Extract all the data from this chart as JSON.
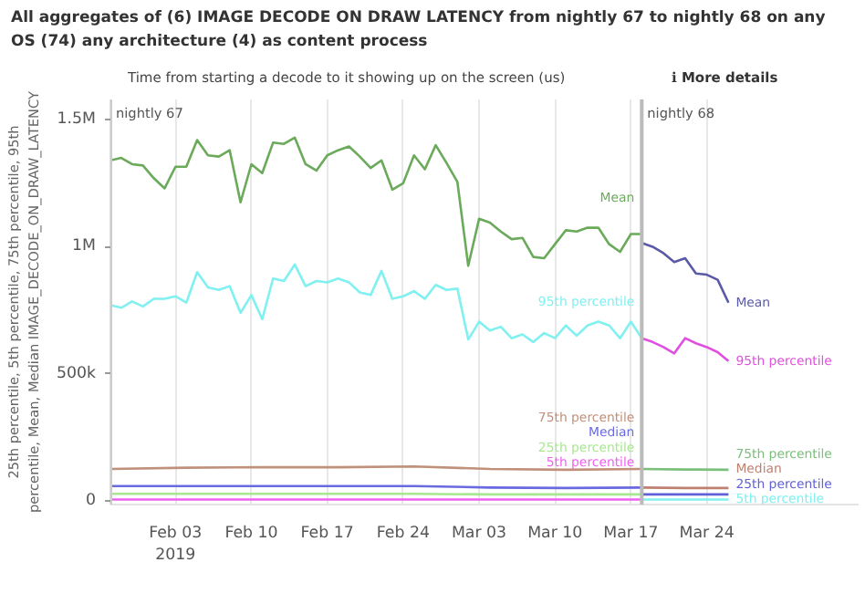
{
  "chart_data": {
    "type": "line",
    "title": "All aggregates of (6) IMAGE DECODE ON DRAW LATENCY from nightly 67 to nightly 68 on any OS (74) any architecture (4) as content process",
    "subtitle": "Time from starting a decode to it showing up on the screen (us)",
    "annotations": [
      "ℹ More details"
    ],
    "ylabel": "25th percentile, 5th percentile, 75th percentile, 95th percentile, Mean, Median IMAGE_DECODE_ON_DRAW_LATENCY",
    "xlim": [
      "2019-01-28",
      "2019-04-07"
    ],
    "xticks": [
      {
        "value": "2019-02-03",
        "label": "Feb 03\n2019"
      },
      {
        "value": "2019-02-10",
        "label": "Feb 10"
      },
      {
        "value": "2019-02-17",
        "label": "Feb 17"
      },
      {
        "value": "2019-02-24",
        "label": "Feb 24"
      },
      {
        "value": "2019-03-03",
        "label": "Mar 03"
      },
      {
        "value": "2019-03-10",
        "label": "Mar 10"
      },
      {
        "value": "2019-03-17",
        "label": "Mar 17"
      },
      {
        "value": "2019-03-24",
        "label": "Mar 24"
      }
    ],
    "ylim": [
      -15000,
      1580000
    ],
    "yticks": [
      {
        "value": 0,
        "label": "0"
      },
      {
        "value": 500000,
        "label": "500k"
      },
      {
        "value": 1000000,
        "label": "1M"
      },
      {
        "value": 1500000,
        "label": "1.5M"
      }
    ],
    "grid": "x",
    "marker": "none",
    "line_style": "solid",
    "ref_lines": [
      {
        "axis": "x",
        "value": "2019-01-28",
        "label": "nightly 67",
        "color": "#cccccc"
      },
      {
        "axis": "x",
        "value": "2019-03-18",
        "label": "nightly 68",
        "color": "#bbbbbb"
      }
    ],
    "series": [
      {
        "name": "Mean",
        "color": "#6aaa5a",
        "x": [
          "2019-01-28",
          "2019-01-29",
          "2019-01-30",
          "2019-01-31",
          "2019-02-01",
          "2019-02-02",
          "2019-02-03",
          "2019-02-04",
          "2019-02-05",
          "2019-02-06",
          "2019-02-07",
          "2019-02-08",
          "2019-02-09",
          "2019-02-10",
          "2019-02-11",
          "2019-02-12",
          "2019-02-13",
          "2019-02-14",
          "2019-02-15",
          "2019-02-16",
          "2019-02-17",
          "2019-02-18",
          "2019-02-19",
          "2019-02-20",
          "2019-02-21",
          "2019-02-22",
          "2019-02-23",
          "2019-02-24",
          "2019-02-25",
          "2019-02-26",
          "2019-02-27",
          "2019-02-28",
          "2019-03-01",
          "2019-03-02",
          "2019-03-03",
          "2019-03-04",
          "2019-03-05",
          "2019-03-06",
          "2019-03-07",
          "2019-03-08",
          "2019-03-09",
          "2019-03-10",
          "2019-03-11",
          "2019-03-12",
          "2019-03-13",
          "2019-03-14",
          "2019-03-15",
          "2019-03-16",
          "2019-03-17",
          "2019-03-18"
        ],
        "values": [
          1340000,
          1350000,
          1325000,
          1320000,
          1270000,
          1230000,
          1315000,
          1315000,
          1420000,
          1360000,
          1355000,
          1380000,
          1175000,
          1325000,
          1290000,
          1410000,
          1405000,
          1430000,
          1325000,
          1300000,
          1360000,
          1380000,
          1395000,
          1355000,
          1310000,
          1340000,
          1225000,
          1250000,
          1360000,
          1305000,
          1400000,
          1330000,
          1255000,
          925000,
          1110000,
          1095000,
          1060000,
          1030000,
          1035000,
          960000,
          955000,
          1010000,
          1065000,
          1060000,
          1075000,
          1075000,
          1010000,
          980000,
          1050000,
          1050000
        ]
      },
      {
        "name": "95th percentile",
        "color": "#80f0f0",
        "x": [
          "2019-01-28",
          "2019-01-29",
          "2019-01-30",
          "2019-01-31",
          "2019-02-01",
          "2019-02-02",
          "2019-02-03",
          "2019-02-04",
          "2019-02-05",
          "2019-02-06",
          "2019-02-07",
          "2019-02-08",
          "2019-02-09",
          "2019-02-10",
          "2019-02-11",
          "2019-02-12",
          "2019-02-13",
          "2019-02-14",
          "2019-02-15",
          "2019-02-16",
          "2019-02-17",
          "2019-02-18",
          "2019-02-19",
          "2019-02-20",
          "2019-02-21",
          "2019-02-22",
          "2019-02-23",
          "2019-02-24",
          "2019-02-25",
          "2019-02-26",
          "2019-02-27",
          "2019-02-28",
          "2019-03-01",
          "2019-03-02",
          "2019-03-03",
          "2019-03-04",
          "2019-03-05",
          "2019-03-06",
          "2019-03-07",
          "2019-03-08",
          "2019-03-09",
          "2019-03-10",
          "2019-03-11",
          "2019-03-12",
          "2019-03-13",
          "2019-03-14",
          "2019-03-15",
          "2019-03-16",
          "2019-03-17",
          "2019-03-18"
        ],
        "values": [
          770000,
          760000,
          785000,
          765000,
          795000,
          795000,
          805000,
          780000,
          900000,
          840000,
          830000,
          845000,
          740000,
          810000,
          715000,
          875000,
          865000,
          930000,
          845000,
          865000,
          860000,
          875000,
          860000,
          820000,
          810000,
          905000,
          795000,
          805000,
          825000,
          795000,
          850000,
          830000,
          835000,
          635000,
          705000,
          670000,
          685000,
          640000,
          655000,
          625000,
          660000,
          640000,
          690000,
          650000,
          690000,
          705000,
          690000,
          640000,
          705000,
          640000
        ]
      },
      {
        "name": "75th percentile",
        "color": "#c0907a",
        "x": [
          "2019-01-28",
          "2019-02-04",
          "2019-02-11",
          "2019-02-18",
          "2019-02-25",
          "2019-03-04",
          "2019-03-11",
          "2019-03-18"
        ],
        "values": [
          125000,
          130000,
          132000,
          132000,
          135000,
          125000,
          122000,
          125000
        ]
      },
      {
        "name": "Median",
        "color": "#6a6ae0",
        "x": [
          "2019-01-28",
          "2019-02-04",
          "2019-02-11",
          "2019-02-18",
          "2019-02-25",
          "2019-03-04",
          "2019-03-11",
          "2019-03-18"
        ],
        "values": [
          58000,
          58000,
          58000,
          58000,
          58000,
          52000,
          50000,
          52000
        ]
      },
      {
        "name": "25th percentile",
        "color": "#a8e890",
        "x": [
          "2019-01-28",
          "2019-02-04",
          "2019-02-11",
          "2019-02-18",
          "2019-02-25",
          "2019-03-04",
          "2019-03-11",
          "2019-03-18"
        ],
        "values": [
          27000,
          27000,
          27000,
          27000,
          27000,
          25000,
          25000,
          25000
        ]
      },
      {
        "name": "5th percentile",
        "color": "#f060f0",
        "x": [
          "2019-01-28",
          "2019-02-04",
          "2019-02-11",
          "2019-02-18",
          "2019-02-25",
          "2019-03-04",
          "2019-03-11",
          "2019-03-18"
        ],
        "values": [
          5000,
          5000,
          5000,
          5000,
          5000,
          5000,
          5000,
          5000
        ]
      },
      {
        "name": "Mean",
        "color": "#5a5aa8",
        "x": [
          "2019-03-18",
          "2019-03-19",
          "2019-03-20",
          "2019-03-21",
          "2019-03-22",
          "2019-03-23",
          "2019-03-24",
          "2019-03-25",
          "2019-03-26"
        ],
        "values": [
          1015000,
          1000000,
          975000,
          940000,
          955000,
          895000,
          890000,
          870000,
          780000
        ]
      },
      {
        "name": "95th percentile",
        "color": "#e050e0",
        "x": [
          "2019-03-18",
          "2019-03-19",
          "2019-03-20",
          "2019-03-21",
          "2019-03-22",
          "2019-03-23",
          "2019-03-24",
          "2019-03-25",
          "2019-03-26"
        ],
        "values": [
          640000,
          625000,
          605000,
          580000,
          640000,
          620000,
          605000,
          585000,
          550000
        ]
      },
      {
        "name": "75th percentile",
        "color": "#7abf7a",
        "x": [
          "2019-03-18",
          "2019-03-22",
          "2019-03-26"
        ],
        "values": [
          125000,
          123000,
          122000
        ]
      },
      {
        "name": "Median",
        "color": "#c08070",
        "x": [
          "2019-03-18",
          "2019-03-22",
          "2019-03-26"
        ],
        "values": [
          52000,
          50000,
          50000
        ]
      },
      {
        "name": "25th percentile",
        "color": "#6060d8",
        "x": [
          "2019-03-18",
          "2019-03-22",
          "2019-03-26"
        ],
        "values": [
          25000,
          25000,
          25000
        ]
      },
      {
        "name": "5th percentile",
        "color": "#80f0f0",
        "x": [
          "2019-03-18",
          "2019-03-22",
          "2019-03-26"
        ],
        "values": [
          5000,
          5000,
          5000
        ]
      }
    ]
  }
}
